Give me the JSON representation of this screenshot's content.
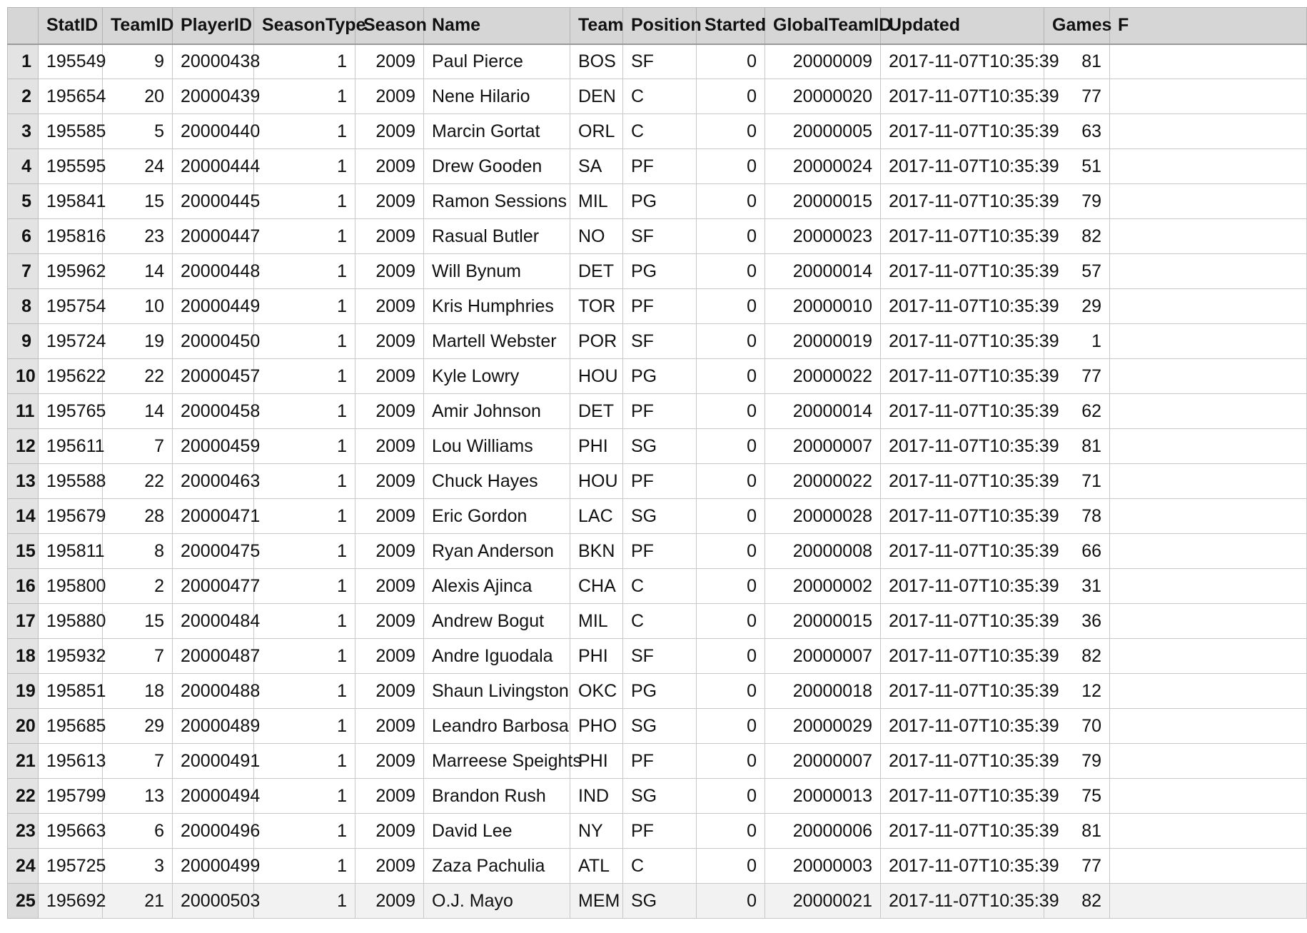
{
  "grid": {
    "columns": [
      "StatID",
      "TeamID",
      "PlayerID",
      "SeasonType",
      "Season",
      "Name",
      "Team",
      "Position",
      "Started",
      "GlobalTeamID",
      "Updated",
      "Games",
      "F"
    ],
    "rows": [
      {
        "n": "1",
        "c": [
          "195549",
          "9",
          "20000438",
          "1",
          "2009",
          "Paul Pierce",
          "BOS",
          "SF",
          "0",
          "20000009",
          "2017-11-07T10:35:39",
          "81",
          ""
        ]
      },
      {
        "n": "2",
        "c": [
          "195654",
          "20",
          "20000439",
          "1",
          "2009",
          "Nene Hilario",
          "DEN",
          "C",
          "0",
          "20000020",
          "2017-11-07T10:35:39",
          "77",
          ""
        ]
      },
      {
        "n": "3",
        "c": [
          "195585",
          "5",
          "20000440",
          "1",
          "2009",
          "Marcin Gortat",
          "ORL",
          "C",
          "0",
          "20000005",
          "2017-11-07T10:35:39",
          "63",
          ""
        ]
      },
      {
        "n": "4",
        "c": [
          "195595",
          "24",
          "20000444",
          "1",
          "2009",
          "Drew Gooden",
          "SA",
          "PF",
          "0",
          "20000024",
          "2017-11-07T10:35:39",
          "51",
          ""
        ]
      },
      {
        "n": "5",
        "c": [
          "195841",
          "15",
          "20000445",
          "1",
          "2009",
          "Ramon Sessions",
          "MIL",
          "PG",
          "0",
          "20000015",
          "2017-11-07T10:35:39",
          "79",
          ""
        ]
      },
      {
        "n": "6",
        "c": [
          "195816",
          "23",
          "20000447",
          "1",
          "2009",
          "Rasual Butler",
          "NO",
          "SF",
          "0",
          "20000023",
          "2017-11-07T10:35:39",
          "82",
          ""
        ]
      },
      {
        "n": "7",
        "c": [
          "195962",
          "14",
          "20000448",
          "1",
          "2009",
          "Will Bynum",
          "DET",
          "PG",
          "0",
          "20000014",
          "2017-11-07T10:35:39",
          "57",
          ""
        ]
      },
      {
        "n": "8",
        "c": [
          "195754",
          "10",
          "20000449",
          "1",
          "2009",
          "Kris Humphries",
          "TOR",
          "PF",
          "0",
          "20000010",
          "2017-11-07T10:35:39",
          "29",
          ""
        ]
      },
      {
        "n": "9",
        "c": [
          "195724",
          "19",
          "20000450",
          "1",
          "2009",
          "Martell Webster",
          "POR",
          "SF",
          "0",
          "20000019",
          "2017-11-07T10:35:39",
          "1",
          ""
        ]
      },
      {
        "n": "10",
        "c": [
          "195622",
          "22",
          "20000457",
          "1",
          "2009",
          "Kyle Lowry",
          "HOU",
          "PG",
          "0",
          "20000022",
          "2017-11-07T10:35:39",
          "77",
          ""
        ]
      },
      {
        "n": "11",
        "c": [
          "195765",
          "14",
          "20000458",
          "1",
          "2009",
          "Amir Johnson",
          "DET",
          "PF",
          "0",
          "20000014",
          "2017-11-07T10:35:39",
          "62",
          ""
        ]
      },
      {
        "n": "12",
        "c": [
          "195611",
          "7",
          "20000459",
          "1",
          "2009",
          "Lou Williams",
          "PHI",
          "SG",
          "0",
          "20000007",
          "2017-11-07T10:35:39",
          "81",
          ""
        ]
      },
      {
        "n": "13",
        "c": [
          "195588",
          "22",
          "20000463",
          "1",
          "2009",
          "Chuck Hayes",
          "HOU",
          "PF",
          "0",
          "20000022",
          "2017-11-07T10:35:39",
          "71",
          ""
        ]
      },
      {
        "n": "14",
        "c": [
          "195679",
          "28",
          "20000471",
          "1",
          "2009",
          "Eric Gordon",
          "LAC",
          "SG",
          "0",
          "20000028",
          "2017-11-07T10:35:39",
          "78",
          ""
        ]
      },
      {
        "n": "15",
        "c": [
          "195811",
          "8",
          "20000475",
          "1",
          "2009",
          "Ryan Anderson",
          "BKN",
          "PF",
          "0",
          "20000008",
          "2017-11-07T10:35:39",
          "66",
          ""
        ]
      },
      {
        "n": "16",
        "c": [
          "195800",
          "2",
          "20000477",
          "1",
          "2009",
          "Alexis Ajinca",
          "CHA",
          "C",
          "0",
          "20000002",
          "2017-11-07T10:35:39",
          "31",
          ""
        ]
      },
      {
        "n": "17",
        "c": [
          "195880",
          "15",
          "20000484",
          "1",
          "2009",
          "Andrew Bogut",
          "MIL",
          "C",
          "0",
          "20000015",
          "2017-11-07T10:35:39",
          "36",
          ""
        ]
      },
      {
        "n": "18",
        "c": [
          "195932",
          "7",
          "20000487",
          "1",
          "2009",
          "Andre Iguodala",
          "PHI",
          "SF",
          "0",
          "20000007",
          "2017-11-07T10:35:39",
          "82",
          ""
        ]
      },
      {
        "n": "19",
        "c": [
          "195851",
          "18",
          "20000488",
          "1",
          "2009",
          "Shaun Livingston",
          "OKC",
          "PG",
          "0",
          "20000018",
          "2017-11-07T10:35:39",
          "12",
          ""
        ]
      },
      {
        "n": "20",
        "c": [
          "195685",
          "29",
          "20000489",
          "1",
          "2009",
          "Leandro Barbosa",
          "PHO",
          "SG",
          "0",
          "20000029",
          "2017-11-07T10:35:39",
          "70",
          ""
        ]
      },
      {
        "n": "21",
        "c": [
          "195613",
          "7",
          "20000491",
          "1",
          "2009",
          "Marreese Speights",
          "PHI",
          "PF",
          "0",
          "20000007",
          "2017-11-07T10:35:39",
          "79",
          ""
        ]
      },
      {
        "n": "22",
        "c": [
          "195799",
          "13",
          "20000494",
          "1",
          "2009",
          "Brandon Rush",
          "IND",
          "SG",
          "0",
          "20000013",
          "2017-11-07T10:35:39",
          "75",
          ""
        ]
      },
      {
        "n": "23",
        "c": [
          "195663",
          "6",
          "20000496",
          "1",
          "2009",
          "David Lee",
          "NY",
          "PF",
          "0",
          "20000006",
          "2017-11-07T10:35:39",
          "81",
          ""
        ]
      },
      {
        "n": "24",
        "c": [
          "195725",
          "3",
          "20000499",
          "1",
          "2009",
          "Zaza Pachulia",
          "ATL",
          "C",
          "0",
          "20000003",
          "2017-11-07T10:35:39",
          "77",
          ""
        ]
      },
      {
        "n": "25",
        "c": [
          "195692",
          "21",
          "20000503",
          "1",
          "2009",
          "O.J. Mayo",
          "MEM",
          "SG",
          "0",
          "20000021",
          "2017-11-07T10:35:39",
          "82",
          ""
        ]
      }
    ]
  }
}
